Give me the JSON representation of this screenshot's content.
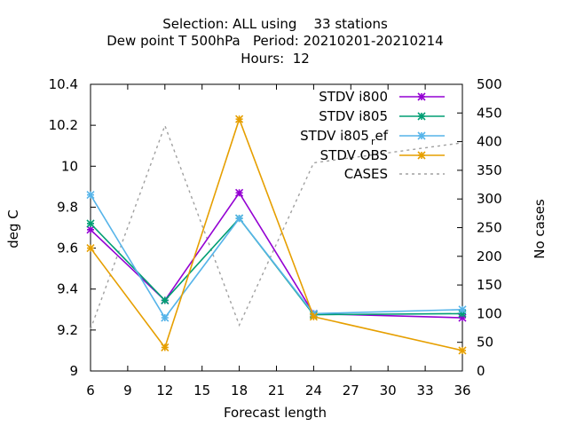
{
  "chart_data": {
    "type": "line",
    "title_lines": [
      "Selection: ALL using    33 stations",
      "Dew point T 500hPa   Period: 20210201-20210214",
      "Hours:  12"
    ],
    "xlabel": "Forecast length",
    "ylabel": "deg C",
    "y2label": "No cases",
    "x_ticks": [
      6,
      9,
      12,
      15,
      18,
      21,
      24,
      27,
      30,
      33,
      36
    ],
    "y_ticks": [
      "9",
      "9.2",
      "9.4",
      "9.6",
      "9.8",
      "10",
      "10.2",
      "10.4"
    ],
    "y2_ticks": [
      "0",
      "50",
      "100",
      "150",
      "200",
      "250",
      "300",
      "350",
      "400",
      "450",
      "500"
    ],
    "xlim": [
      6,
      36
    ],
    "ylim": [
      9.0,
      10.4
    ],
    "y2lim": [
      0,
      500
    ],
    "legend_position": "top-right",
    "series": [
      {
        "name": "STDV i800",
        "color": "#9400d3",
        "marker": "x-star",
        "dashed": false,
        "axis": "y",
        "x": [
          6,
          12,
          18,
          24,
          36
        ],
        "y": [
          9.69,
          9.345,
          9.87,
          9.28,
          9.26
        ]
      },
      {
        "name": "STDV i805",
        "color": "#009e73",
        "marker": "x-star",
        "dashed": false,
        "axis": "y",
        "x": [
          6,
          12,
          18,
          24,
          36
        ],
        "y": [
          9.72,
          9.345,
          9.745,
          9.275,
          9.28
        ]
      },
      {
        "name": "STDV i805_ref",
        "color": "#56b4e9",
        "marker": "x-star",
        "dashed": false,
        "axis": "y",
        "x": [
          6,
          12,
          18,
          24,
          36
        ],
        "y": [
          9.86,
          9.26,
          9.745,
          9.28,
          9.3
        ]
      },
      {
        "name": "STDV OBS",
        "color": "#e69f00",
        "marker": "x-star",
        "dashed": false,
        "axis": "y",
        "x": [
          6,
          12,
          18,
          24,
          36
        ],
        "y": [
          9.6,
          9.115,
          10.23,
          9.265,
          9.1
        ]
      },
      {
        "name": "CASES",
        "color": "#a0a0a0",
        "marker": "none",
        "dashed": true,
        "axis": "y2",
        "x": [
          6,
          12,
          18,
          24,
          36
        ],
        "y": [
          73,
          428,
          80,
          363,
          398
        ]
      }
    ],
    "legend_labels": [
      {
        "main": "STDV i800",
        "sub": ""
      },
      {
        "main": "STDV i805",
        "sub": ""
      },
      {
        "main": "STDV i805",
        "sub": "r",
        "tail": "ef"
      },
      {
        "main": "STDV OBS",
        "sub": ""
      },
      {
        "main": "CASES",
        "sub": ""
      }
    ]
  }
}
